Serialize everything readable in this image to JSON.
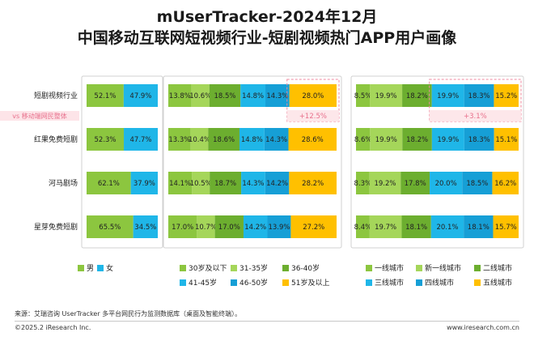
{
  "title_line1": "mUserTracker-2024年12月",
  "title_line2": "中国移动互联网短视频行业-短剧视频热门APP用户画像",
  "source": "来源：艾瑞咨询 UserTracker 多平台网民行为监测数据库（桌面及智能终端）。",
  "copyright": "©2025.2 iResearch Inc.",
  "website": "www.iresearch.com.cn",
  "vs_label": "vs 移动端网民整体",
  "chart_data": {
    "type": "bar",
    "stacked": true,
    "orientation": "horizontal",
    "categories": [
      "短剧视频行业",
      "红果免费短剧",
      "河马剧场",
      "星芽免费短剧"
    ],
    "panels": [
      {
        "name": "gender",
        "series": [
          {
            "name": "男",
            "color": "#8cc63f",
            "values": [
              52.1,
              52.3,
              62.1,
              65.5
            ]
          },
          {
            "name": "女",
            "color": "#1fb6e8",
            "values": [
              47.9,
              47.7,
              37.9,
              34.5
            ]
          }
        ]
      },
      {
        "name": "age",
        "series": [
          {
            "name": "30岁及以下",
            "color": "#8cc63f",
            "values": [
              13.8,
              13.3,
              14.1,
              17.0
            ]
          },
          {
            "name": "31-35岁",
            "color": "#a5d65a",
            "values": [
              10.6,
              10.4,
              10.5,
              10.7
            ]
          },
          {
            "name": "36-40岁",
            "color": "#6cae2f",
            "values": [
              18.5,
              18.6,
              18.7,
              17.0
            ]
          },
          {
            "name": "41-45岁",
            "color": "#1fb6e8",
            "values": [
              14.8,
              14.8,
              14.3,
              14.2
            ]
          },
          {
            "name": "46-50岁",
            "color": "#169fd6",
            "values": [
              14.3,
              14.3,
              14.2,
              13.9
            ]
          },
          {
            "name": "51岁及以上",
            "color": "#ffc000",
            "values": [
              28.0,
              28.6,
              28.2,
              27.2
            ]
          }
        ],
        "annotation": "+12.5%"
      },
      {
        "name": "city",
        "series": [
          {
            "name": "一线城市",
            "color": "#8cc63f",
            "values": [
              8.5,
              8.6,
              8.3,
              8.4
            ]
          },
          {
            "name": "新一线城市",
            "color": "#a5d65a",
            "values": [
              19.9,
              19.9,
              19.2,
              19.7
            ]
          },
          {
            "name": "二线城市",
            "color": "#6cae2f",
            "values": [
              18.2,
              18.2,
              17.8,
              18.1
            ]
          },
          {
            "name": "三线城市",
            "color": "#1fb6e8",
            "values": [
              19.9,
              19.9,
              20.0,
              20.1
            ]
          },
          {
            "name": "四线城市",
            "color": "#169fd6",
            "values": [
              18.3,
              18.3,
              18.5,
              18.1
            ]
          },
          {
            "name": "五线城市",
            "color": "#ffc000",
            "values": [
              15.2,
              15.1,
              16.2,
              15.7
            ]
          }
        ],
        "annotation": "+3.1%"
      }
    ]
  }
}
